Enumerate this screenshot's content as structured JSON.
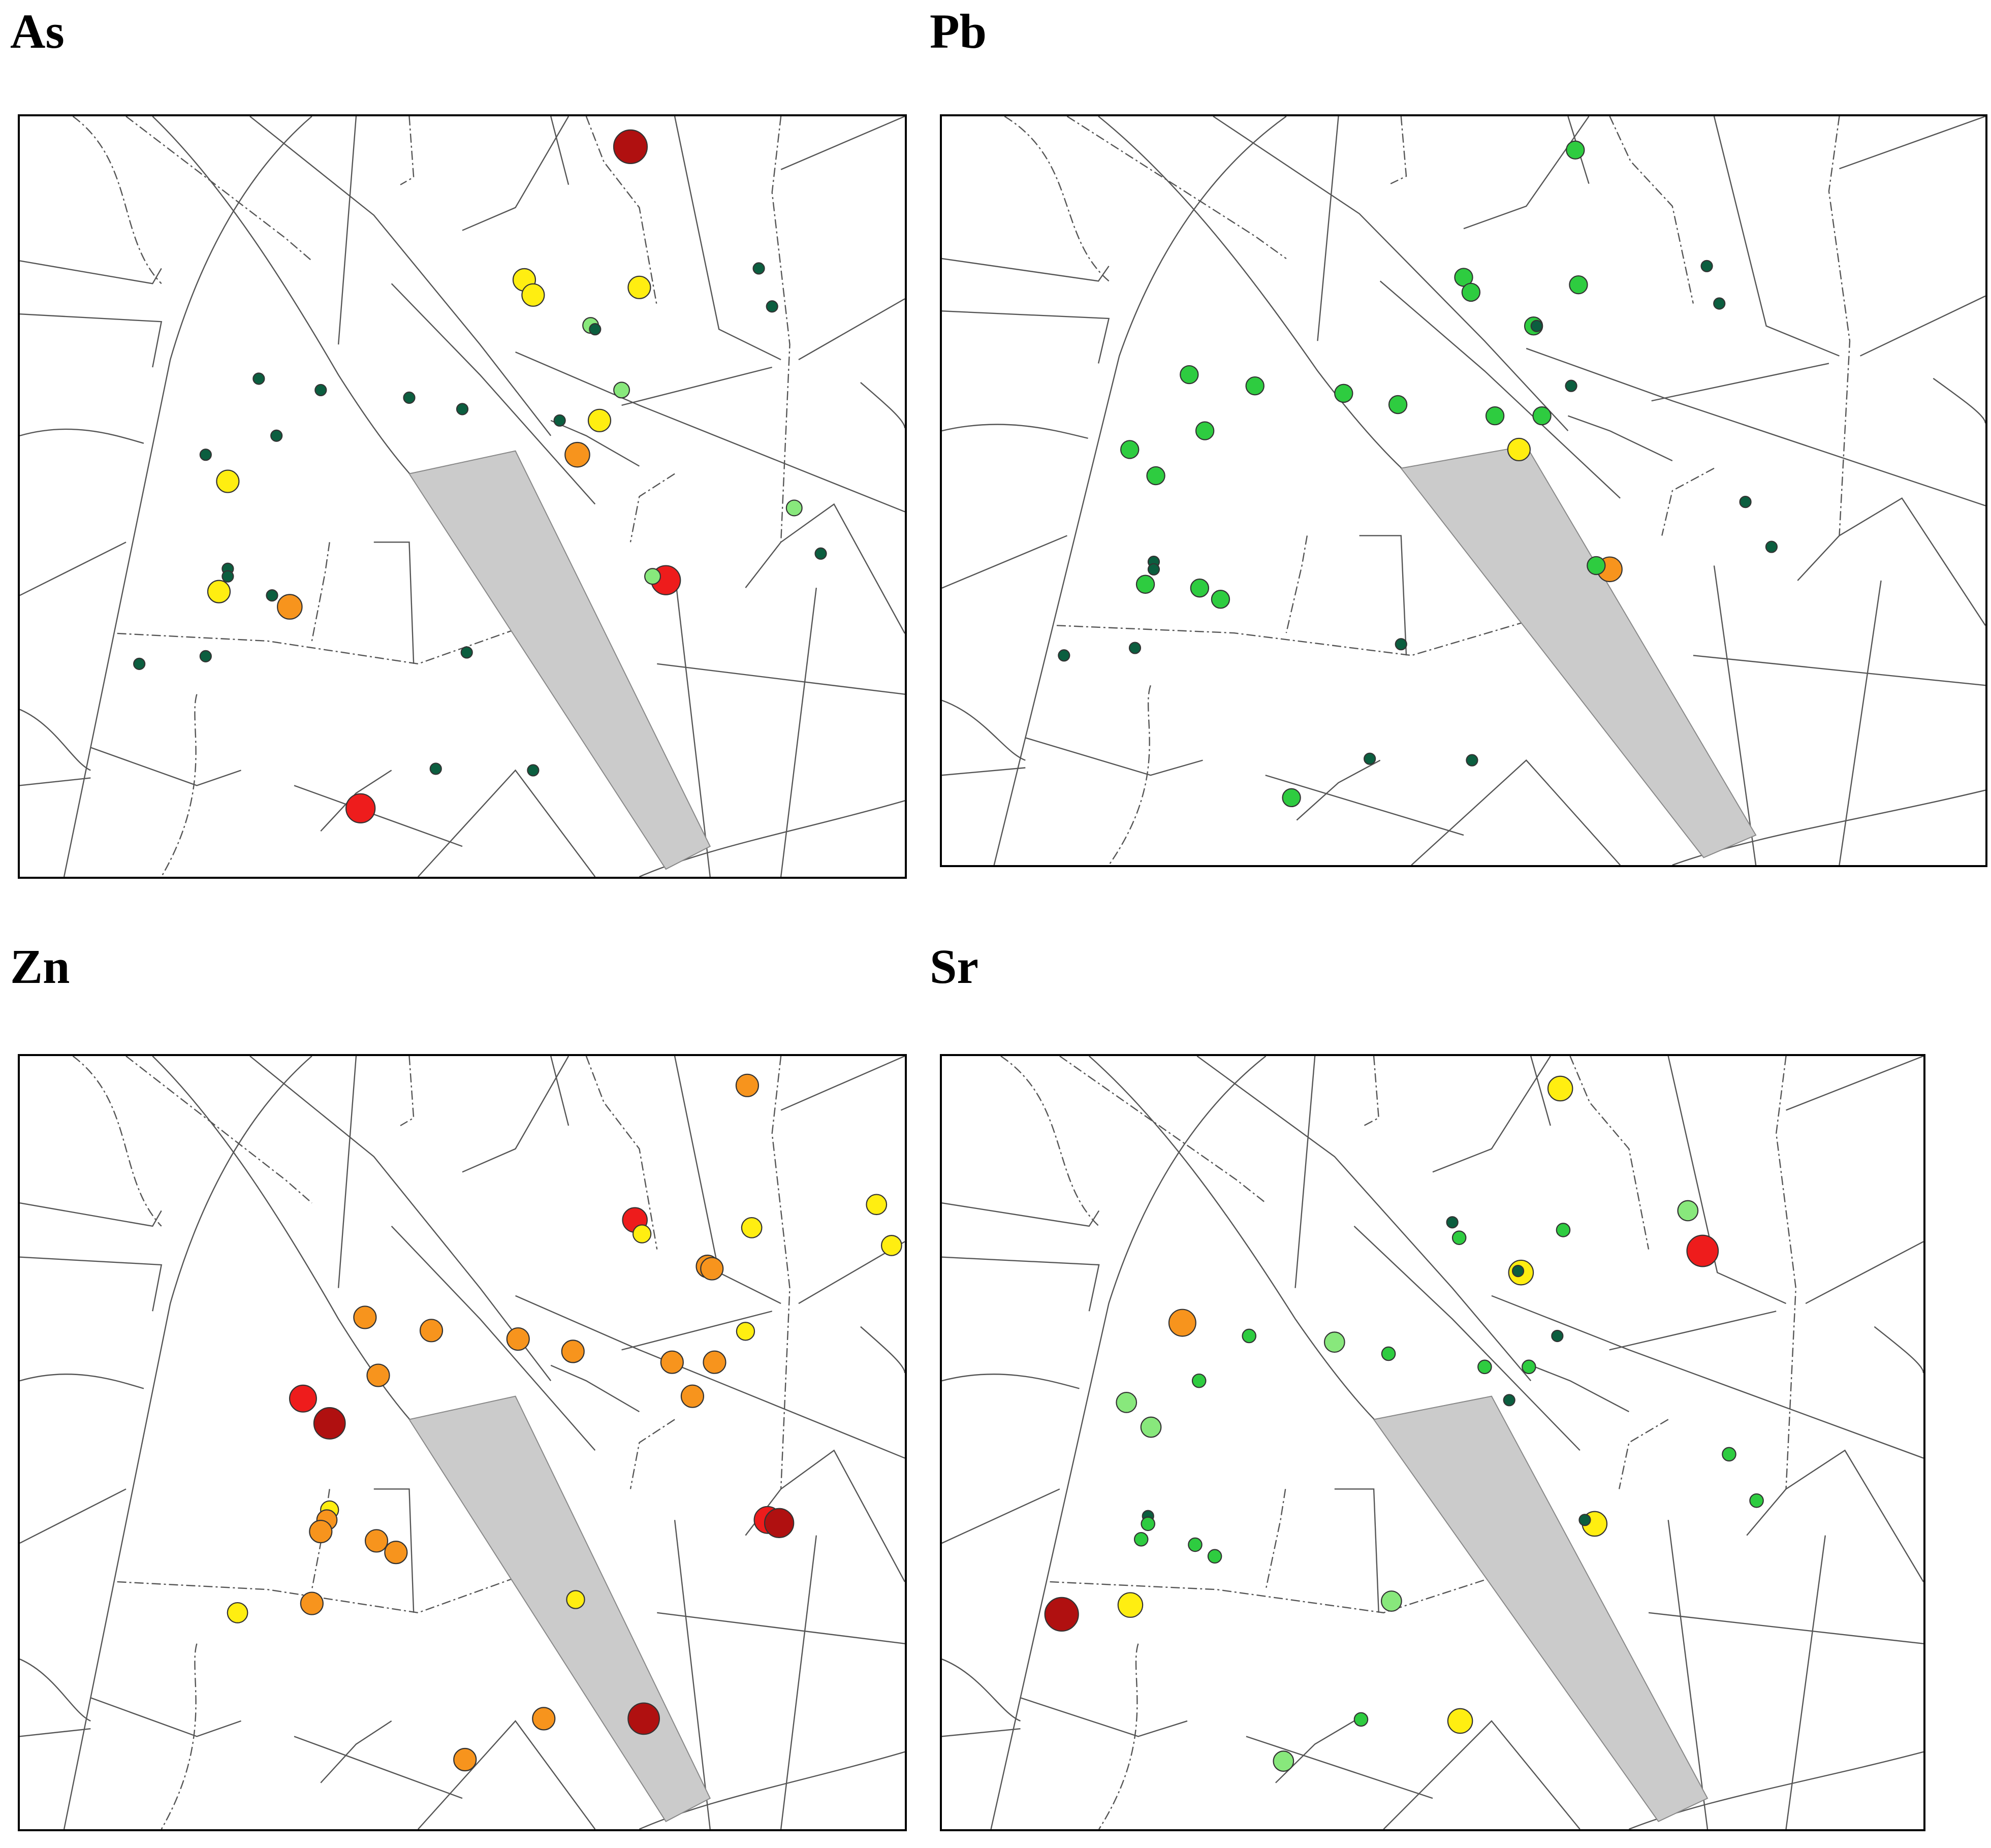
{
  "colors": {
    "very_low": "#0b5e3f",
    "low": "#2ecc40",
    "low_mid": "#88e87c",
    "mid": "#ffee11",
    "high": "#f7941d",
    "very_high": "#ee1c1c",
    "extreme": "#b01010",
    "strip": "#cbcbcb"
  },
  "panels": [
    {
      "id": "as",
      "title": "As",
      "points": [
        {
          "x": 0.69,
          "y": 0.04,
          "c": "extreme",
          "s": 3
        },
        {
          "x": 0.57,
          "y": 0.215,
          "c": "mid",
          "s": 2
        },
        {
          "x": 0.58,
          "y": 0.235,
          "c": "mid",
          "s": 2
        },
        {
          "x": 0.7,
          "y": 0.225,
          "c": "mid",
          "s": 2
        },
        {
          "x": 0.835,
          "y": 0.2,
          "c": "very_low",
          "s": 1
        },
        {
          "x": 0.85,
          "y": 0.25,
          "c": "very_low",
          "s": 1
        },
        {
          "x": 0.645,
          "y": 0.275,
          "c": "low_mid",
          "s": 1.4
        },
        {
          "x": 0.65,
          "y": 0.28,
          "c": "very_low",
          "s": 1
        },
        {
          "x": 0.68,
          "y": 0.36,
          "c": "low_mid",
          "s": 1.4
        },
        {
          "x": 0.27,
          "y": 0.345,
          "c": "very_low",
          "s": 1
        },
        {
          "x": 0.34,
          "y": 0.36,
          "c": "very_low",
          "s": 1
        },
        {
          "x": 0.44,
          "y": 0.37,
          "c": "very_low",
          "s": 1
        },
        {
          "x": 0.5,
          "y": 0.385,
          "c": "very_low",
          "s": 1
        },
        {
          "x": 0.61,
          "y": 0.4,
          "c": "very_low",
          "s": 1
        },
        {
          "x": 0.655,
          "y": 0.4,
          "c": "mid",
          "s": 2
        },
        {
          "x": 0.29,
          "y": 0.42,
          "c": "very_low",
          "s": 1
        },
        {
          "x": 0.63,
          "y": 0.445,
          "c": "high",
          "s": 2.2
        },
        {
          "x": 0.21,
          "y": 0.445,
          "c": "very_low",
          "s": 1
        },
        {
          "x": 0.235,
          "y": 0.48,
          "c": "mid",
          "s": 2
        },
        {
          "x": 0.875,
          "y": 0.515,
          "c": "low_mid",
          "s": 1.4
        },
        {
          "x": 0.905,
          "y": 0.575,
          "c": "very_low",
          "s": 1
        },
        {
          "x": 0.235,
          "y": 0.595,
          "c": "very_low",
          "s": 1
        },
        {
          "x": 0.235,
          "y": 0.605,
          "c": "very_low",
          "s": 1
        },
        {
          "x": 0.73,
          "y": 0.61,
          "c": "very_high",
          "s": 2.6
        },
        {
          "x": 0.715,
          "y": 0.605,
          "c": "low_mid",
          "s": 1.4
        },
        {
          "x": 0.225,
          "y": 0.625,
          "c": "mid",
          "s": 2
        },
        {
          "x": 0.285,
          "y": 0.63,
          "c": "very_low",
          "s": 1
        },
        {
          "x": 0.305,
          "y": 0.645,
          "c": "high",
          "s": 2.2
        },
        {
          "x": 0.135,
          "y": 0.72,
          "c": "very_low",
          "s": 1
        },
        {
          "x": 0.21,
          "y": 0.71,
          "c": "very_low",
          "s": 1
        },
        {
          "x": 0.505,
          "y": 0.705,
          "c": "very_low",
          "s": 1
        },
        {
          "x": 0.47,
          "y": 0.858,
          "c": "very_low",
          "s": 1
        },
        {
          "x": 0.58,
          "y": 0.86,
          "c": "very_low",
          "s": 1
        },
        {
          "x": 0.385,
          "y": 0.91,
          "c": "very_high",
          "s": 2.6
        }
      ]
    },
    {
      "id": "pb",
      "title": "Pb",
      "points": [
        {
          "x": 0.607,
          "y": 0.045,
          "c": "low",
          "s": 1.6
        },
        {
          "x": 0.733,
          "y": 0.2,
          "c": "very_low",
          "s": 1
        },
        {
          "x": 0.745,
          "y": 0.25,
          "c": "very_low",
          "s": 1
        },
        {
          "x": 0.5,
          "y": 0.215,
          "c": "low",
          "s": 1.6
        },
        {
          "x": 0.507,
          "y": 0.235,
          "c": "low",
          "s": 1.6
        },
        {
          "x": 0.61,
          "y": 0.225,
          "c": "low",
          "s": 1.6
        },
        {
          "x": 0.567,
          "y": 0.28,
          "c": "low",
          "s": 1.6
        },
        {
          "x": 0.57,
          "y": 0.28,
          "c": "very_low",
          "s": 1
        },
        {
          "x": 0.237,
          "y": 0.345,
          "c": "low",
          "s": 1.6
        },
        {
          "x": 0.3,
          "y": 0.36,
          "c": "low",
          "s": 1.6
        },
        {
          "x": 0.385,
          "y": 0.37,
          "c": "low",
          "s": 1.6
        },
        {
          "x": 0.437,
          "y": 0.385,
          "c": "low",
          "s": 1.6
        },
        {
          "x": 0.603,
          "y": 0.36,
          "c": "very_low",
          "s": 1
        },
        {
          "x": 0.53,
          "y": 0.4,
          "c": "low",
          "s": 1.6
        },
        {
          "x": 0.575,
          "y": 0.4,
          "c": "low",
          "s": 1.6
        },
        {
          "x": 0.252,
          "y": 0.42,
          "c": "low",
          "s": 1.6
        },
        {
          "x": 0.18,
          "y": 0.445,
          "c": "low",
          "s": 1.6
        },
        {
          "x": 0.205,
          "y": 0.48,
          "c": "low",
          "s": 1.6
        },
        {
          "x": 0.553,
          "y": 0.445,
          "c": "mid",
          "s": 2
        },
        {
          "x": 0.77,
          "y": 0.515,
          "c": "very_low",
          "s": 1
        },
        {
          "x": 0.795,
          "y": 0.575,
          "c": "very_low",
          "s": 1
        },
        {
          "x": 0.203,
          "y": 0.595,
          "c": "very_low",
          "s": 1
        },
        {
          "x": 0.203,
          "y": 0.605,
          "c": "very_low",
          "s": 1
        },
        {
          "x": 0.195,
          "y": 0.625,
          "c": "low",
          "s": 1.6
        },
        {
          "x": 0.247,
          "y": 0.63,
          "c": "low",
          "s": 1.6
        },
        {
          "x": 0.267,
          "y": 0.645,
          "c": "low",
          "s": 1.6
        },
        {
          "x": 0.64,
          "y": 0.605,
          "c": "high",
          "s": 2.2
        },
        {
          "x": 0.627,
          "y": 0.6,
          "c": "low",
          "s": 1.6
        },
        {
          "x": 0.117,
          "y": 0.72,
          "c": "very_low",
          "s": 1
        },
        {
          "x": 0.185,
          "y": 0.71,
          "c": "very_low",
          "s": 1
        },
        {
          "x": 0.44,
          "y": 0.705,
          "c": "very_low",
          "s": 1
        },
        {
          "x": 0.41,
          "y": 0.858,
          "c": "very_low",
          "s": 1
        },
        {
          "x": 0.508,
          "y": 0.86,
          "c": "very_low",
          "s": 1
        },
        {
          "x": 0.335,
          "y": 0.91,
          "c": "low",
          "s": 1.6
        }
      ]
    },
    {
      "id": "zn",
      "title": "Zn",
      "points": [
        {
          "x": 0.822,
          "y": 0.038,
          "c": "high",
          "s": 2
        },
        {
          "x": 0.968,
          "y": 0.192,
          "c": "mid",
          "s": 1.8
        },
        {
          "x": 0.985,
          "y": 0.245,
          "c": "mid",
          "s": 1.8
        },
        {
          "x": 0.695,
          "y": 0.212,
          "c": "very_high",
          "s": 2.2
        },
        {
          "x": 0.703,
          "y": 0.23,
          "c": "mid",
          "s": 1.6
        },
        {
          "x": 0.827,
          "y": 0.222,
          "c": "mid",
          "s": 1.8
        },
        {
          "x": 0.777,
          "y": 0.272,
          "c": "high",
          "s": 2
        },
        {
          "x": 0.782,
          "y": 0.275,
          "c": "high",
          "s": 2
        },
        {
          "x": 0.39,
          "y": 0.338,
          "c": "high",
          "s": 2
        },
        {
          "x": 0.465,
          "y": 0.355,
          "c": "high",
          "s": 2
        },
        {
          "x": 0.563,
          "y": 0.366,
          "c": "high",
          "s": 2
        },
        {
          "x": 0.625,
          "y": 0.382,
          "c": "high",
          "s": 2
        },
        {
          "x": 0.82,
          "y": 0.356,
          "c": "mid",
          "s": 1.6
        },
        {
          "x": 0.737,
          "y": 0.396,
          "c": "high",
          "s": 2
        },
        {
          "x": 0.785,
          "y": 0.396,
          "c": "high",
          "s": 2
        },
        {
          "x": 0.405,
          "y": 0.413,
          "c": "high",
          "s": 2
        },
        {
          "x": 0.76,
          "y": 0.44,
          "c": "high",
          "s": 2
        },
        {
          "x": 0.32,
          "y": 0.443,
          "c": "very_high",
          "s": 2.4
        },
        {
          "x": 0.35,
          "y": 0.475,
          "c": "extreme",
          "s": 2.8
        },
        {
          "x": 0.845,
          "y": 0.6,
          "c": "very_high",
          "s": 2.4
        },
        {
          "x": 0.858,
          "y": 0.604,
          "c": "extreme",
          "s": 2.6
        },
        {
          "x": 0.35,
          "y": 0.587,
          "c": "mid",
          "s": 1.6
        },
        {
          "x": 0.347,
          "y": 0.6,
          "c": "high",
          "s": 1.8
        },
        {
          "x": 0.34,
          "y": 0.615,
          "c": "high",
          "s": 2
        },
        {
          "x": 0.403,
          "y": 0.627,
          "c": "high",
          "s": 2
        },
        {
          "x": 0.425,
          "y": 0.642,
          "c": "high",
          "s": 2
        },
        {
          "x": 0.246,
          "y": 0.72,
          "c": "mid",
          "s": 1.8
        },
        {
          "x": 0.33,
          "y": 0.708,
          "c": "high",
          "s": 2
        },
        {
          "x": 0.628,
          "y": 0.703,
          "c": "mid",
          "s": 1.6
        },
        {
          "x": 0.592,
          "y": 0.857,
          "c": "high",
          "s": 2
        },
        {
          "x": 0.705,
          "y": 0.857,
          "c": "extreme",
          "s": 2.8
        },
        {
          "x": 0.503,
          "y": 0.91,
          "c": "high",
          "s": 2
        }
      ]
    },
    {
      "id": "sr",
      "title": "Sr",
      "points": [
        {
          "x": 0.63,
          "y": 0.042,
          "c": "mid",
          "s": 2.2
        },
        {
          "x": 0.76,
          "y": 0.2,
          "c": "low_mid",
          "s": 1.8
        },
        {
          "x": 0.775,
          "y": 0.252,
          "c": "very_high",
          "s": 2.8
        },
        {
          "x": 0.52,
          "y": 0.215,
          "c": "very_low",
          "s": 1
        },
        {
          "x": 0.527,
          "y": 0.235,
          "c": "low",
          "s": 1.2
        },
        {
          "x": 0.633,
          "y": 0.225,
          "c": "low",
          "s": 1.2
        },
        {
          "x": 0.59,
          "y": 0.28,
          "c": "mid",
          "s": 2.2
        },
        {
          "x": 0.587,
          "y": 0.278,
          "c": "very_low",
          "s": 1
        },
        {
          "x": 0.245,
          "y": 0.345,
          "c": "high",
          "s": 2.4
        },
        {
          "x": 0.313,
          "y": 0.362,
          "c": "low",
          "s": 1.2
        },
        {
          "x": 0.4,
          "y": 0.37,
          "c": "low_mid",
          "s": 1.8
        },
        {
          "x": 0.455,
          "y": 0.385,
          "c": "low",
          "s": 1.2
        },
        {
          "x": 0.627,
          "y": 0.362,
          "c": "very_low",
          "s": 1
        },
        {
          "x": 0.553,
          "y": 0.402,
          "c": "low",
          "s": 1.2
        },
        {
          "x": 0.598,
          "y": 0.402,
          "c": "low",
          "s": 1.2
        },
        {
          "x": 0.262,
          "y": 0.42,
          "c": "low",
          "s": 1.2
        },
        {
          "x": 0.578,
          "y": 0.445,
          "c": "very_low",
          "s": 1
        },
        {
          "x": 0.188,
          "y": 0.448,
          "c": "low_mid",
          "s": 1.8
        },
        {
          "x": 0.213,
          "y": 0.48,
          "c": "low_mid",
          "s": 1.8
        },
        {
          "x": 0.802,
          "y": 0.515,
          "c": "low",
          "s": 1.2
        },
        {
          "x": 0.83,
          "y": 0.575,
          "c": "low",
          "s": 1.2
        },
        {
          "x": 0.21,
          "y": 0.595,
          "c": "very_low",
          "s": 1
        },
        {
          "x": 0.21,
          "y": 0.605,
          "c": "low",
          "s": 1.2
        },
        {
          "x": 0.203,
          "y": 0.625,
          "c": "low",
          "s": 1.2
        },
        {
          "x": 0.258,
          "y": 0.632,
          "c": "low",
          "s": 1.2
        },
        {
          "x": 0.278,
          "y": 0.647,
          "c": "low",
          "s": 1.2
        },
        {
          "x": 0.665,
          "y": 0.605,
          "c": "mid",
          "s": 2.2
        },
        {
          "x": 0.655,
          "y": 0.6,
          "c": "very_low",
          "s": 1
        },
        {
          "x": 0.122,
          "y": 0.722,
          "c": "extreme",
          "s": 3
        },
        {
          "x": 0.192,
          "y": 0.71,
          "c": "mid",
          "s": 2.2
        },
        {
          "x": 0.458,
          "y": 0.705,
          "c": "low_mid",
          "s": 1.8
        },
        {
          "x": 0.427,
          "y": 0.858,
          "c": "low",
          "s": 1.2
        },
        {
          "x": 0.528,
          "y": 0.86,
          "c": "mid",
          "s": 2.2
        },
        {
          "x": 0.348,
          "y": 0.912,
          "c": "low_mid",
          "s": 1.8
        }
      ]
    }
  ]
}
